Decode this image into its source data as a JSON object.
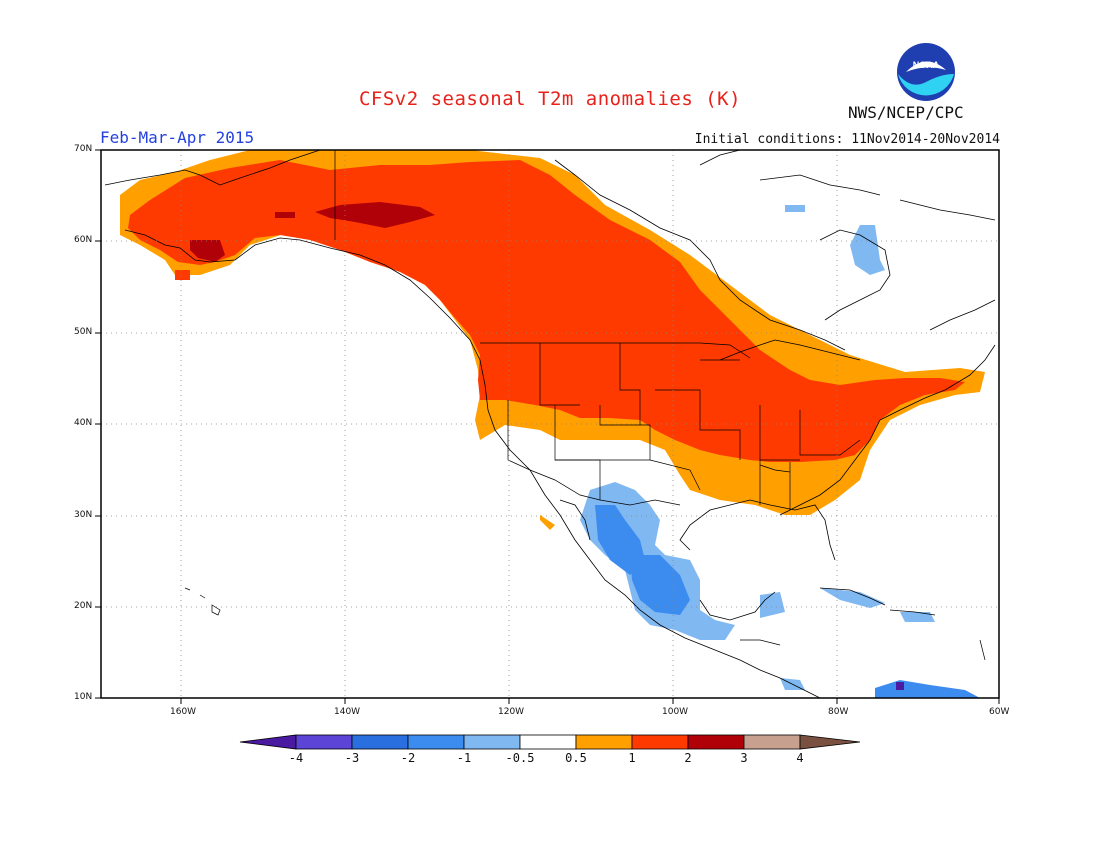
{
  "header": {
    "title": "CFSv2 seasonal T2m anomalies (K)",
    "period": "Feb-Mar-Apr 2015",
    "initial_conditions": "Initial conditions: 11Nov2014-20Nov2014",
    "agency": "NWS/NCEP/CPC",
    "logo_text": "NOAA"
  },
  "map": {
    "lon_ticks": [
      "160W",
      "140W",
      "120W",
      "100W",
      "80W",
      "60W"
    ],
    "lat_ticks": [
      "70N",
      "60N",
      "50N",
      "40N",
      "30N",
      "20N",
      "10N"
    ],
    "lon_range": [
      -172,
      -60
    ],
    "lat_range": [
      10,
      70
    ],
    "grid": "dotted"
  },
  "colorbar": {
    "labels": [
      "-4",
      "-3",
      "-2",
      "-1",
      "-0.5",
      "0.5",
      "1",
      "2",
      "3",
      "4"
    ],
    "colors": [
      "#4a1aa0",
      "#5b44d6",
      "#2a6fe0",
      "#3c8cf0",
      "#80b8f2",
      "#ffffff",
      "#ff9f00",
      "#ff3a00",
      "#b00008",
      "#c8a090",
      "#7a5040"
    ]
  },
  "colors": {
    "warm_light": "#ff9f00",
    "warm": "#ff3a00",
    "warm_dark": "#b00008",
    "cool_light": "#80b8f2",
    "cool": "#3c8cf0",
    "cool_dark": "#4a1aa0"
  }
}
